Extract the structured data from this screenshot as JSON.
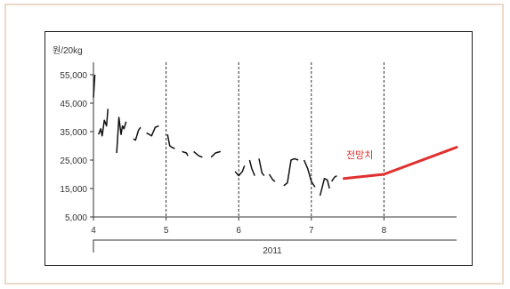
{
  "chart_data": {
    "type": "line",
    "ylabel": "원/20kg",
    "ylim": [
      5000,
      55000
    ],
    "yticks": [
      "55,000",
      "45,000",
      "35,000",
      "25,000",
      "15,000",
      "5,000"
    ],
    "ytick_values": [
      55000,
      45000,
      35000,
      25000,
      15000,
      5000
    ],
    "xlim": [
      4,
      9
    ],
    "xticks": [
      "4",
      "5",
      "6",
      "7",
      "8"
    ],
    "xtick_values": [
      4,
      5,
      6,
      7,
      8
    ],
    "year_label": "2011",
    "grid": "dashed vertical lines at months 5, 6, 7, 8",
    "series": [
      {
        "color": "#111111",
        "segments": [
          [
            [
              4.0,
              47000
            ],
            [
              4.02,
              55000
            ]
          ],
          [
            [
              4.07,
              34000
            ],
            [
              4.1,
              36000
            ],
            [
              4.12,
              33500
            ],
            [
              4.15,
              39000
            ],
            [
              4.18,
              37000
            ],
            [
              4.2,
              43000
            ]
          ],
          [
            [
              4.32,
              27500
            ],
            [
              4.35,
              40000
            ],
            [
              4.38,
              34000
            ],
            [
              4.4,
              37000
            ],
            [
              4.42,
              36000
            ],
            [
              4.45,
              38500
            ]
          ],
          [
            [
              4.55,
              32500
            ],
            [
              4.58,
              32000
            ],
            [
              4.62,
              35500
            ],
            [
              4.65,
              36500
            ]
          ],
          [
            [
              4.73,
              34500
            ],
            [
              4.77,
              34000
            ],
            [
              4.8,
              33500
            ],
            [
              4.85,
              36500
            ],
            [
              4.9,
              37000
            ]
          ],
          [
            [
              5.02,
              34000
            ],
            [
              5.05,
              30000
            ],
            [
              5.08,
              29500
            ],
            [
              5.12,
              29000
            ]
          ],
          [
            [
              5.22,
              28000
            ],
            [
              5.28,
              27500
            ],
            [
              5.3,
              26500
            ]
          ],
          [
            [
              5.38,
              28000
            ],
            [
              5.45,
              26500
            ],
            [
              5.5,
              26000
            ]
          ],
          [
            [
              5.62,
              26000
            ],
            [
              5.68,
              27500
            ],
            [
              5.75,
              28000
            ]
          ],
          [
            [
              5.95,
              21000
            ],
            [
              6.0,
              19500
            ],
            [
              6.05,
              21000
            ],
            [
              6.08,
              23000
            ]
          ],
          [
            [
              6.15,
              25000
            ],
            [
              6.18,
              22000
            ],
            [
              6.22,
              19500
            ]
          ],
          [
            [
              6.28,
              25500
            ],
            [
              6.32,
              20500
            ],
            [
              6.35,
              19500
            ]
          ],
          [
            [
              6.42,
              20000
            ],
            [
              6.47,
              18000
            ],
            [
              6.5,
              17500
            ]
          ],
          [
            [
              6.62,
              16000
            ],
            [
              6.67,
              17000
            ],
            [
              6.72,
              25000
            ],
            [
              6.77,
              25500
            ],
            [
              6.82,
              25000
            ]
          ],
          [
            [
              6.9,
              25000
            ],
            [
              6.95,
              22000
            ],
            [
              7.0,
              17500
            ],
            [
              7.05,
              15500
            ]
          ],
          [
            [
              7.12,
              12500
            ],
            [
              7.18,
              18500
            ],
            [
              7.22,
              18000
            ],
            [
              7.25,
              15000
            ]
          ],
          [
            [
              7.28,
              17500
            ],
            [
              7.32,
              19000
            ],
            [
              7.35,
              19500
            ]
          ]
        ]
      },
      {
        "color": "#e03030",
        "label": "전망치",
        "points": [
          [
            7.45,
            18500
          ],
          [
            8.0,
            20000
          ],
          [
            9.0,
            29500
          ]
        ]
      }
    ]
  }
}
